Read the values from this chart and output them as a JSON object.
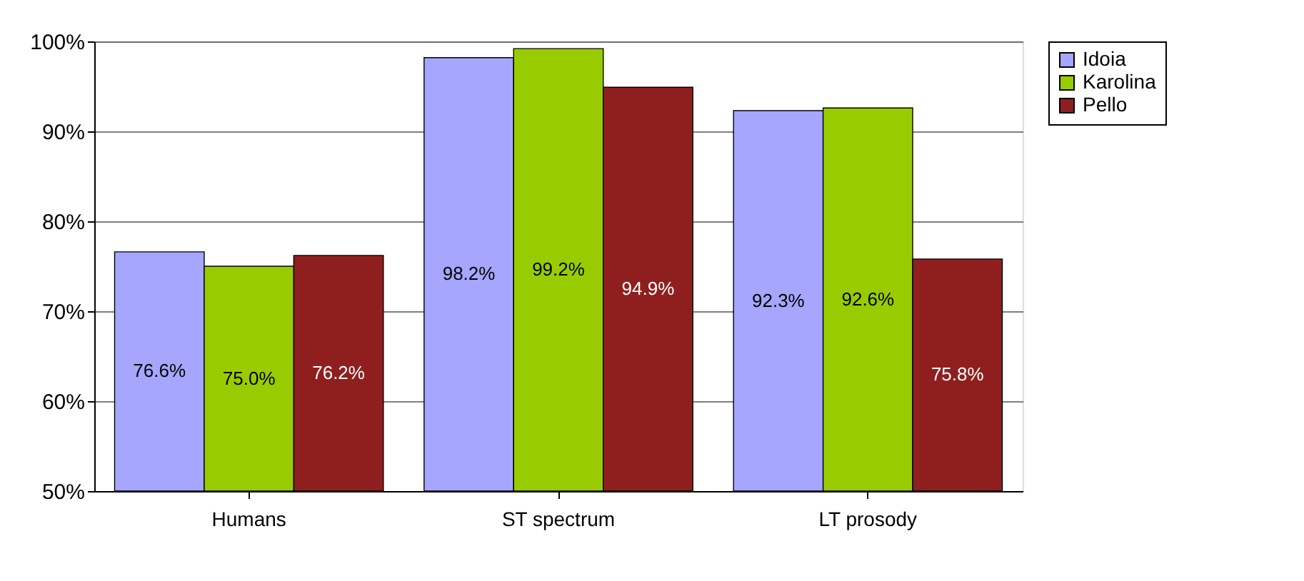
{
  "chart_data": {
    "type": "bar",
    "categories": [
      "Humans",
      "ST spectrum",
      "LT prosody"
    ],
    "series": [
      {
        "name": "Idoia",
        "color": "#a6a6ff",
        "values": [
          76.6,
          98.2,
          92.3
        ],
        "value_labels": [
          "76.6%",
          "98.2%",
          "92.3%"
        ]
      },
      {
        "name": "Karolina",
        "color": "#99cc00",
        "values": [
          75.0,
          99.2,
          92.6
        ],
        "value_labels": [
          "75.0%",
          "99.2%",
          "92.6%"
        ]
      },
      {
        "name": "Pello",
        "color": "#8f1f1f",
        "values": [
          76.2,
          94.9,
          75.8
        ],
        "value_labels": [
          "76.2%",
          "94.9%",
          "75.8%"
        ]
      }
    ],
    "ylim": [
      50,
      100
    ],
    "yticks": [
      {
        "value": 50,
        "label": "50%"
      },
      {
        "value": 60,
        "label": "60%"
      },
      {
        "value": 70,
        "label": "70%"
      },
      {
        "value": 80,
        "label": "80%"
      },
      {
        "value": 90,
        "label": "90%"
      },
      {
        "value": 100,
        "label": "100%"
      }
    ],
    "grid": "y",
    "legend": "right"
  }
}
